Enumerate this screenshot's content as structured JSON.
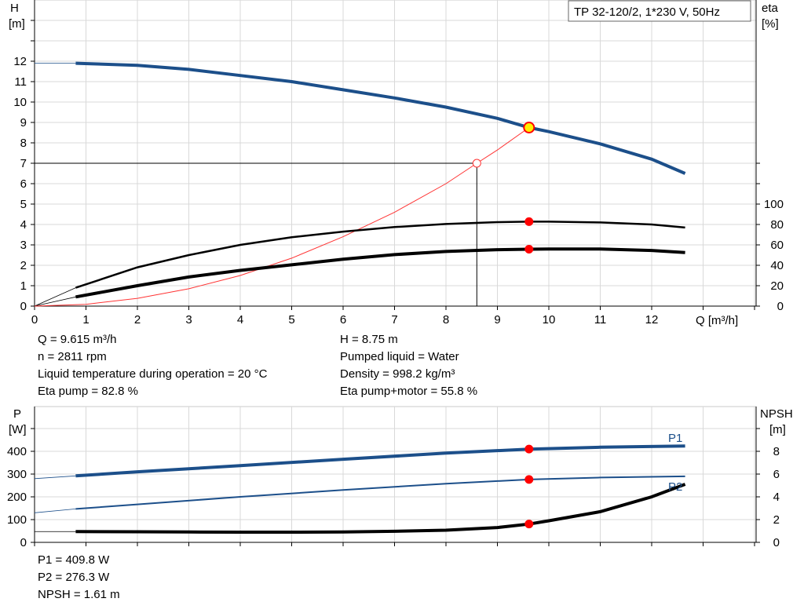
{
  "upper": {
    "title": "TP 32-120/2, 1*230 V, 50Hz",
    "y_left_label": [
      "H",
      "[m]"
    ],
    "y_right_label": [
      "eta",
      "[%]"
    ],
    "x_label": "Q [m³/h]",
    "x_ticks": [
      "0",
      "1",
      "2",
      "3",
      "4",
      "5",
      "6",
      "7",
      "8",
      "9",
      "10",
      "11",
      "12"
    ],
    "y_left_ticks": [
      "0",
      "1",
      "2",
      "3",
      "4",
      "5",
      "6",
      "7",
      "8",
      "9",
      "10",
      "11",
      "12"
    ],
    "y_right_ticks": [
      "0",
      "20",
      "40",
      "60",
      "80",
      "100"
    ],
    "info_left": [
      "Q = 9.615 m³/h",
      "n = 2811 rpm",
      "Liquid temperature during operation = 20 °C",
      "Eta pump = 82.8 %"
    ],
    "info_right": [
      "H = 8.75 m",
      "Pumped liquid = Water",
      "Density = 998.2 kg/m³",
      "Eta pump+motor = 55.8 %"
    ]
  },
  "lower": {
    "y_left_label": [
      "P",
      "[W]"
    ],
    "y_right_label": [
      "NPSH",
      "[m]"
    ],
    "y_left_ticks": [
      "0",
      "100",
      "200",
      "300",
      "400"
    ],
    "y_right_ticks": [
      "0",
      "2",
      "4",
      "6",
      "8"
    ],
    "series_labels": [
      "P1",
      "P2"
    ],
    "info": [
      "P1 = 409.8 W",
      "P2 = 276.3 W",
      "NPSH = 1.61 m"
    ]
  },
  "chart_data": [
    {
      "type": "line",
      "title": "TP 32-120/2, 1*230 V, 50Hz",
      "xlabel": "Q [m³/h]",
      "ylabel": "H [m]",
      "y2label": "eta [%]",
      "xlim": [
        0,
        14
      ],
      "ylim": [
        0,
        14
      ],
      "y2lim": [
        0,
        100
      ],
      "colors": {
        "head": "#1c4f8a",
        "system": "#ff3333",
        "marker": "#ff0000",
        "op_point": "#ffee00"
      },
      "series": [
        {
          "id": "head",
          "axis": "left",
          "x": [
            0.8,
            2,
            3,
            4,
            5,
            6,
            7,
            8,
            9,
            9.615,
            10,
            11,
            12,
            12.65
          ],
          "y": [
            11.9,
            11.8,
            11.6,
            11.3,
            11.0,
            10.6,
            10.2,
            9.75,
            9.2,
            8.75,
            8.55,
            7.95,
            7.2,
            6.5
          ]
        },
        {
          "id": "system",
          "axis": "left",
          "x": [
            0,
            1,
            2,
            3,
            4,
            5,
            6,
            7,
            8,
            8.6,
            9,
            9.615
          ],
          "y": [
            0,
            0.09,
            0.38,
            0.85,
            1.5,
            2.35,
            3.4,
            4.6,
            6.0,
            7.0,
            7.65,
            8.75
          ]
        },
        {
          "id": "eta_pump",
          "axis": "right",
          "x": [
            0.8,
            2,
            3,
            4,
            5,
            6,
            7,
            8,
            9,
            9.615,
            10,
            11,
            12,
            12.65
          ],
          "y": [
            18,
            38,
            50,
            60,
            67.5,
            73,
            77.5,
            80.5,
            82.3,
            82.8,
            82.8,
            82,
            80,
            77
          ]
        },
        {
          "id": "eta_pump_motor",
          "axis": "right",
          "x": [
            0.8,
            2,
            3,
            4,
            5,
            6,
            7,
            8,
            9,
            9.615,
            10,
            11,
            12,
            12.65
          ],
          "y": [
            9,
            20,
            28.5,
            35,
            40.5,
            46,
            50.5,
            53.5,
            55.3,
            55.8,
            56,
            56,
            54.5,
            52.5
          ]
        }
      ],
      "duty_point": {
        "Q": 8.6,
        "H": 7.0
      },
      "operating_point": {
        "Q": 9.615,
        "H": 8.75,
        "eta_pump": 82.8,
        "eta_pump_motor": 55.8
      }
    },
    {
      "type": "line",
      "xlabel": "Q [m³/h]",
      "ylabel": "P [W]",
      "y2label": "NPSH [m]",
      "xlim": [
        0,
        14
      ],
      "ylim": [
        0,
        500
      ],
      "y2lim": [
        0,
        10
      ],
      "series": [
        {
          "id": "P1",
          "name": "P1",
          "axis": "left",
          "x": [
            0.8,
            2,
            4,
            6,
            8,
            9.615,
            11,
            12.65
          ],
          "y": [
            292,
            310,
            337,
            365,
            392,
            409.8,
            418,
            423
          ]
        },
        {
          "id": "P2",
          "name": "P2",
          "axis": "left",
          "x": [
            0.8,
            2,
            4,
            6,
            8,
            9.615,
            11,
            12.65
          ],
          "y": [
            147,
            167,
            200,
            230,
            258,
            276.3,
            285,
            290
          ]
        },
        {
          "id": "NPSH",
          "axis": "right",
          "x": [
            0.8,
            2,
            3,
            4,
            5,
            6,
            7,
            8,
            9,
            9.615,
            10,
            11,
            12,
            12.65
          ],
          "y": [
            0.95,
            0.93,
            0.91,
            0.9,
            0.9,
            0.92,
            0.97,
            1.07,
            1.3,
            1.61,
            1.9,
            2.7,
            4.0,
            5.1
          ]
        }
      ],
      "operating_point": {
        "Q": 9.615,
        "P1": 409.8,
        "P2": 276.3,
        "NPSH": 1.61
      }
    }
  ]
}
